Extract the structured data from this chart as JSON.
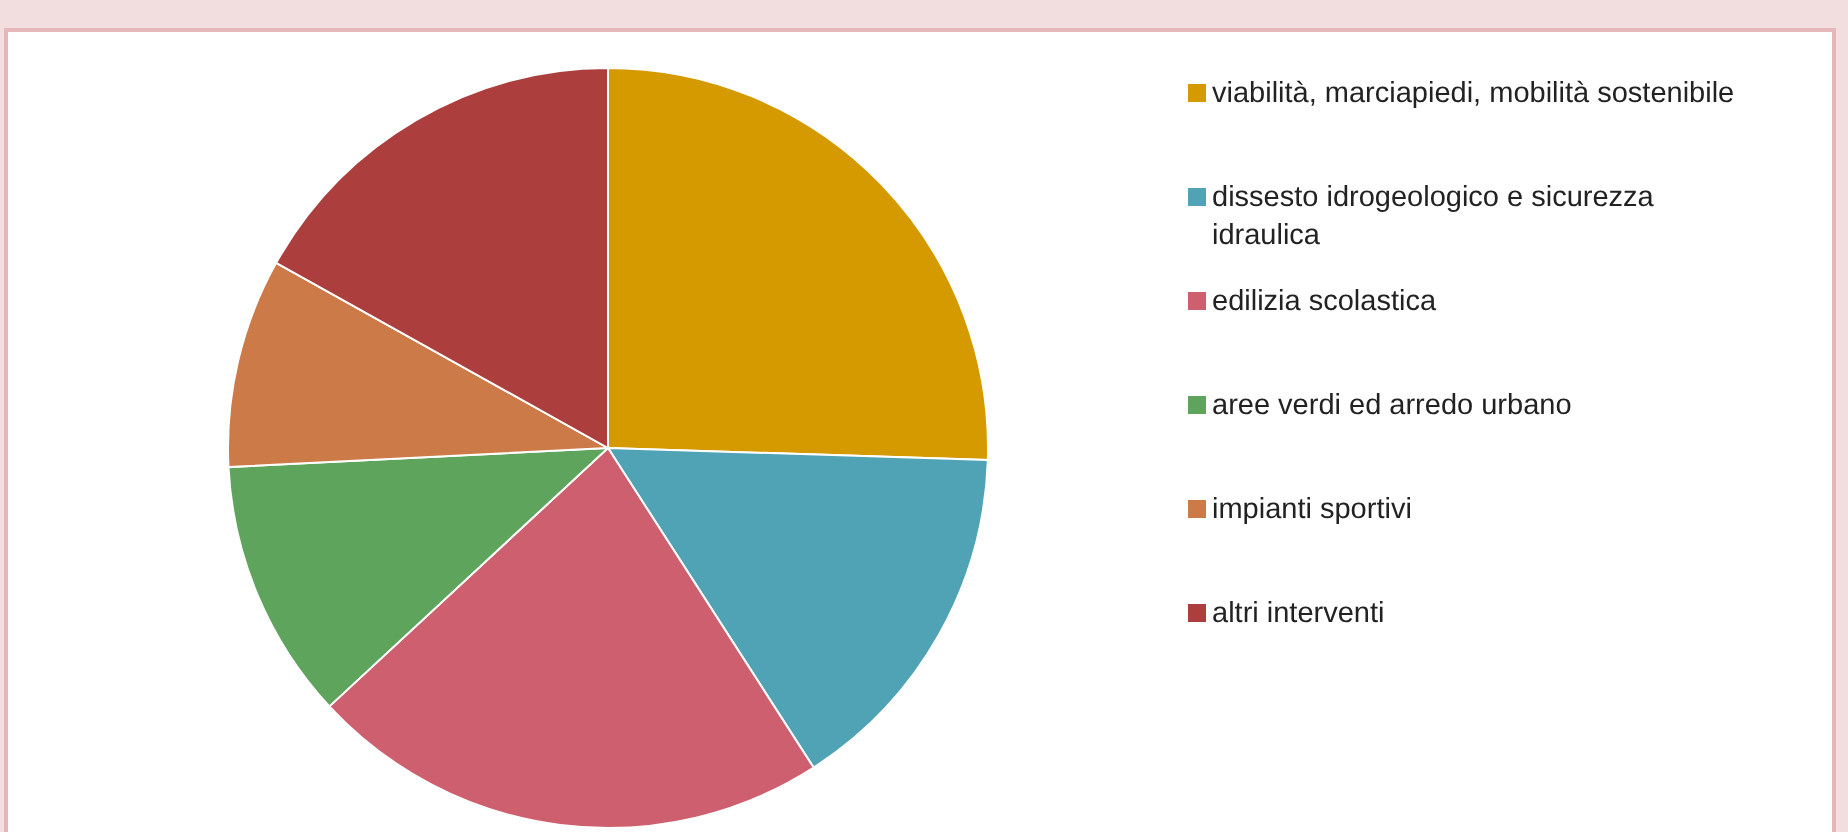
{
  "chart_data": {
    "type": "pie",
    "categories": [
      "viabilità, marciapiedi, mobilità sostenibile",
      "dissesto idrogeologico e sicurezza idraulica",
      "edilizia scolastica",
      "aree verdi ed arredo urbano",
      "impianti sportivi",
      "altri interventi"
    ],
    "values": [
      25.5,
      15.4,
      22.2,
      11.1,
      8.9,
      16.9
    ],
    "colors": [
      "#d49a00",
      "#4fa3b5",
      "#cd5f6e",
      "#5ea45c",
      "#cc7a48",
      "#ac3e3e"
    ],
    "legend": "right"
  }
}
